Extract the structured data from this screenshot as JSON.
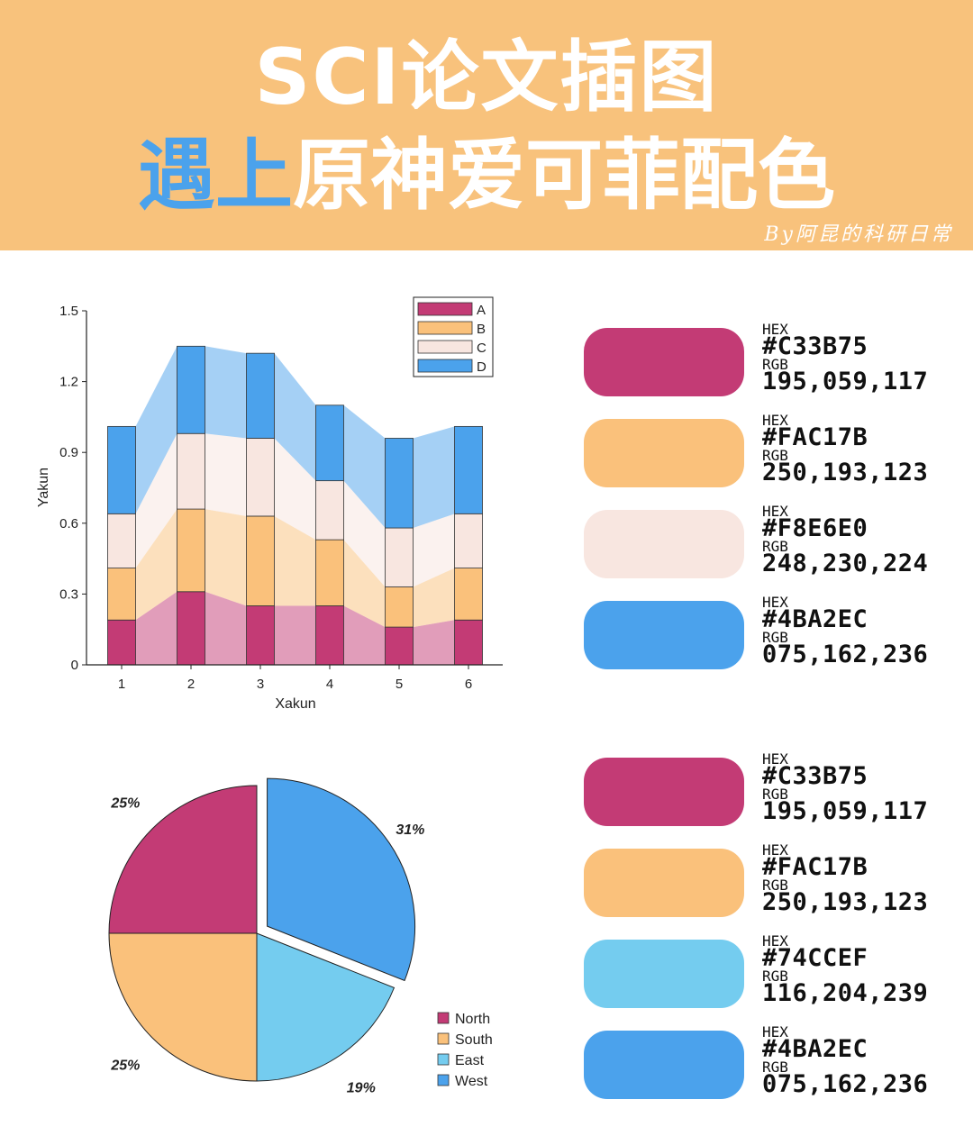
{
  "header": {
    "title_line1": "SCI论文插图",
    "title_line2_highlight": "遇上",
    "title_line2_rest": "原神爱可菲配色",
    "byline": "By阿昆的科研日常"
  },
  "colors": {
    "banner": "#F8C27C",
    "A": "#C33B75",
    "B": "#FAC17B",
    "C": "#F8E6E0",
    "D": "#4BA2EC",
    "East": "#74CCEF"
  },
  "chart_data": [
    {
      "type": "bar",
      "stacked": true,
      "categories": [
        "1",
        "2",
        "3",
        "4",
        "5",
        "6"
      ],
      "series": [
        {
          "name": "A",
          "color": "#C33B75",
          "values": [
            0.19,
            0.31,
            0.25,
            0.25,
            0.16,
            0.19
          ]
        },
        {
          "name": "B",
          "color": "#FAC17B",
          "values": [
            0.22,
            0.35,
            0.38,
            0.28,
            0.17,
            0.22
          ]
        },
        {
          "name": "C",
          "color": "#F8E6E0",
          "values": [
            0.23,
            0.32,
            0.33,
            0.25,
            0.25,
            0.23
          ]
        },
        {
          "name": "D",
          "color": "#4BA2EC",
          "values": [
            0.37,
            0.37,
            0.36,
            0.32,
            0.38,
            0.37
          ]
        }
      ],
      "xlabel": "Xakun",
      "ylabel": "Yakun",
      "ylim": [
        0,
        1.5
      ],
      "yticks": [
        "0",
        "0.3",
        "0.6",
        "0.9",
        "1.2",
        "1.5"
      ],
      "shaded_area_between_bars": true,
      "legend": "top-right",
      "grid": false
    },
    {
      "type": "pie",
      "labels": [
        "North",
        "South",
        "East",
        "West"
      ],
      "values": [
        25,
        25,
        19,
        31
      ],
      "value_labels": [
        "25%",
        "25%",
        "19%",
        "31%"
      ],
      "colors": [
        "#C33B75",
        "#FAC17B",
        "#74CCEF",
        "#4BA2EC"
      ],
      "exploded": [
        "West"
      ],
      "legend": "bottom-right"
    }
  ],
  "palettes": [
    [
      {
        "hex_label": "HEX",
        "hex": "#C33B75",
        "rgb_label": "RGB",
        "rgb": "195,059,117",
        "color": "#C33B75"
      },
      {
        "hex_label": "HEX",
        "hex": "#FAC17B",
        "rgb_label": "RGB",
        "rgb": "250,193,123",
        "color": "#FAC17B"
      },
      {
        "hex_label": "HEX",
        "hex": "#F8E6E0",
        "rgb_label": "RGB",
        "rgb": "248,230,224",
        "color": "#F8E6E0"
      },
      {
        "hex_label": "HEX",
        "hex": "#4BA2EC",
        "rgb_label": "RGB",
        "rgb": "075,162,236",
        "color": "#4BA2EC"
      }
    ],
    [
      {
        "hex_label": "HEX",
        "hex": "#C33B75",
        "rgb_label": "RGB",
        "rgb": "195,059,117",
        "color": "#C33B75"
      },
      {
        "hex_label": "HEX",
        "hex": "#FAC17B",
        "rgb_label": "RGB",
        "rgb": "250,193,123",
        "color": "#FAC17B"
      },
      {
        "hex_label": "HEX",
        "hex": "#74CCEF",
        "rgb_label": "RGB",
        "rgb": "116,204,239",
        "color": "#74CCEF"
      },
      {
        "hex_label": "HEX",
        "hex": "#4BA2EC",
        "rgb_label": "RGB",
        "rgb": "075,162,236",
        "color": "#4BA2EC"
      }
    ]
  ]
}
